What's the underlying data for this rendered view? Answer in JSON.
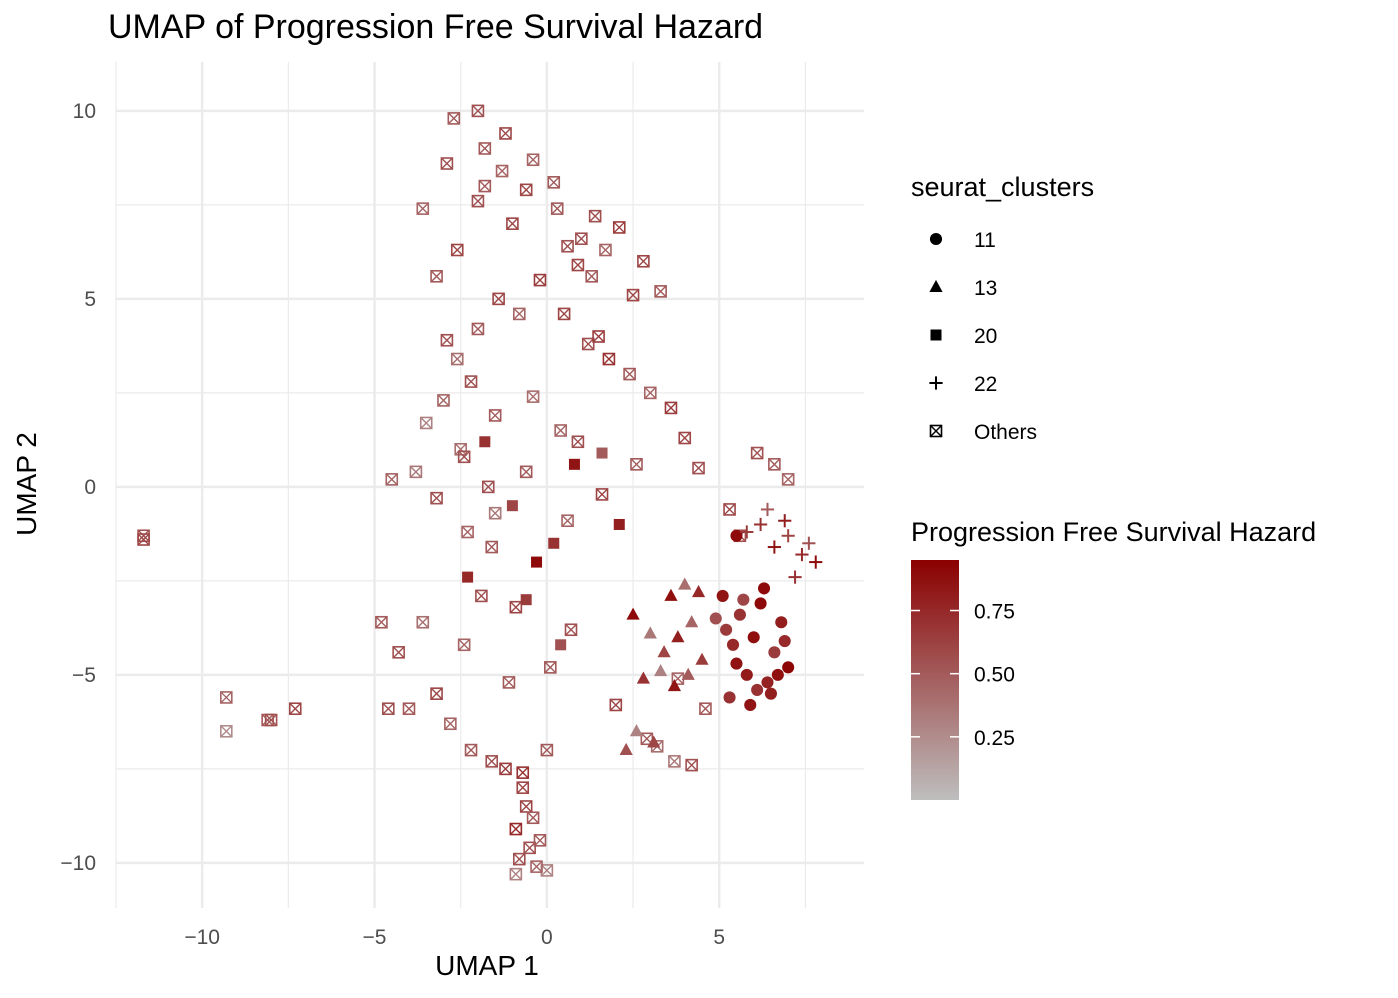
{
  "chart_data": {
    "type": "scatter",
    "title": "UMAP of Progression Free Survival Hazard",
    "xlabel": "UMAP 1",
    "ylabel": "UMAP 2",
    "xlim": [
      -12.5,
      9.2
    ],
    "ylim": [
      -11.2,
      11.3
    ],
    "x_ticks": [
      -10,
      -5,
      0,
      5
    ],
    "x_tick_labels": [
      "−10",
      "−5",
      "0",
      "5"
    ],
    "y_ticks": [
      -10,
      -5,
      0,
      5,
      10
    ],
    "y_tick_labels": [
      "−10",
      "−5",
      "0",
      "5",
      "10"
    ],
    "grid": true,
    "shape_legend": {
      "title": "seurat_clusters",
      "position": "right",
      "items": [
        {
          "label": "11",
          "shape": "circle"
        },
        {
          "label": "13",
          "shape": "triangle"
        },
        {
          "label": "20",
          "shape": "square"
        },
        {
          "label": "22",
          "shape": "plus"
        },
        {
          "label": "Others",
          "shape": "boxed-x"
        }
      ]
    },
    "color_legend": {
      "title": "Progression Free Survival Hazard",
      "position": "right",
      "low_color": "#bebebe",
      "high_color": "#8b0000",
      "range": [
        0.0,
        0.95
      ],
      "ticks": [
        0.25,
        0.5,
        0.75
      ],
      "tick_labels": [
        "0.25",
        "0.50",
        "0.75"
      ]
    },
    "series": [
      {
        "name": "11",
        "shape": "circle",
        "x": [
          5.1,
          5.6,
          6.2,
          6.8,
          5.4,
          6.0,
          6.6,
          5.8,
          6.4,
          7.0,
          5.3,
          5.9,
          6.5,
          5.7,
          6.3,
          6.9,
          5.5,
          6.1,
          6.7,
          5.2,
          4.9,
          5.5
        ],
        "y": [
          -2.9,
          -3.4,
          -3.1,
          -3.6,
          -4.2,
          -4.0,
          -4.4,
          -5.0,
          -5.2,
          -4.8,
          -5.6,
          -5.8,
          -5.5,
          -3.0,
          -2.7,
          -4.1,
          -4.7,
          -5.4,
          -5.0,
          -3.8,
          -3.5,
          -1.3
        ],
        "hazard": [
          0.85,
          0.7,
          0.9,
          0.8,
          0.75,
          0.88,
          0.65,
          0.82,
          0.78,
          0.92,
          0.7,
          0.85,
          0.8,
          0.6,
          0.9,
          0.74,
          0.86,
          0.7,
          0.88,
          0.66,
          0.55,
          0.9
        ]
      },
      {
        "name": "13",
        "shape": "triangle",
        "x": [
          2.5,
          3.0,
          3.4,
          3.8,
          4.2,
          2.8,
          3.3,
          3.7,
          4.1,
          4.5,
          2.3,
          3.6,
          4.0,
          4.4,
          3.1,
          2.6
        ],
        "y": [
          -3.4,
          -3.9,
          -4.4,
          -4.0,
          -3.6,
          -5.1,
          -4.9,
          -5.3,
          -5.0,
          -4.6,
          -7.0,
          -2.9,
          -2.6,
          -2.8,
          -6.8,
          -6.5
        ],
        "hazard": [
          0.9,
          0.35,
          0.6,
          0.8,
          0.45,
          0.7,
          0.3,
          0.85,
          0.5,
          0.65,
          0.55,
          0.88,
          0.4,
          0.75,
          0.6,
          0.3
        ]
      },
      {
        "name": "20",
        "shape": "square",
        "x": [
          -0.3,
          0.2,
          -1.0,
          0.8,
          -2.3,
          1.6,
          -0.6,
          2.1,
          -1.8,
          0.4
        ],
        "y": [
          -2.0,
          -1.5,
          -0.5,
          0.6,
          -2.4,
          0.9,
          -3.0,
          -1.0,
          1.2,
          -4.2
        ],
        "hazard": [
          0.9,
          0.7,
          0.6,
          0.85,
          0.75,
          0.5,
          0.65,
          0.8,
          0.7,
          0.55
        ]
      },
      {
        "name": "22",
        "shape": "plus",
        "x": [
          6.2,
          6.6,
          7.0,
          7.4,
          7.8,
          6.4,
          6.9,
          5.8,
          7.2,
          7.6
        ],
        "y": [
          -1.0,
          -1.6,
          -1.3,
          -1.8,
          -2.0,
          -0.6,
          -0.9,
          -1.2,
          -2.4,
          -1.5
        ],
        "hazard": [
          0.7,
          0.85,
          0.6,
          0.75,
          0.9,
          0.5,
          0.8,
          0.65,
          0.7,
          0.55
        ]
      },
      {
        "name": "Others",
        "shape": "boxed-x",
        "x": [
          -11.7,
          -11.7,
          -9.3,
          -9.3,
          -8.1,
          -8.0,
          -7.3,
          -4.6,
          -4.0,
          -3.6,
          -2.8,
          -2.2,
          -1.6,
          -1.2,
          -0.7,
          0.0,
          -0.6,
          -0.9,
          -0.5,
          0.0,
          -1.5,
          -2.3,
          0.5,
          1.2,
          1.8,
          2.4,
          3.0,
          3.6,
          4.0,
          4.4,
          -2.6,
          -2.0,
          -1.4,
          -0.8,
          -0.2,
          0.6,
          1.3,
          -4.5,
          -3.8,
          -3.2,
          -1.0,
          0.3,
          1.0,
          1.7,
          2.5,
          -2.7,
          -2.0,
          -1.2,
          -0.4,
          0.2,
          1.4,
          2.1,
          2.8,
          3.3,
          -3.6,
          -2.9,
          -1.8,
          0.9,
          1.5,
          6.1,
          6.6,
          7.0,
          5.3,
          5.6,
          3.2,
          3.7,
          -4.8,
          -4.3,
          -3.2,
          -2.4,
          -1.1,
          0.7,
          2.0,
          2.9,
          3.8,
          -3.5,
          -2.5,
          -1.7,
          -0.6,
          0.4,
          1.6,
          2.6,
          -1.9,
          -0.9,
          0.1,
          -3.0,
          -2.2,
          -1.5,
          -0.4,
          0.9,
          -0.7,
          -0.4,
          -0.8,
          -0.3,
          -0.9,
          -0.2,
          -2.9,
          -3.2,
          -2.6,
          -2.0,
          -1.8,
          -1.3,
          -0.6,
          -2.4,
          -1.6,
          0.6,
          4.6,
          4.2
        ],
        "y": [
          -1.3,
          -1.4,
          -5.6,
          -6.5,
          -6.2,
          -6.2,
          -5.9,
          -5.9,
          -5.9,
          -3.6,
          -6.3,
          -7.0,
          -7.3,
          -7.5,
          -7.6,
          -7.0,
          -8.5,
          -9.1,
          -9.6,
          -10.2,
          -0.7,
          -1.2,
          4.6,
          3.8,
          3.4,
          3.0,
          2.5,
          2.1,
          1.3,
          0.5,
          3.4,
          4.2,
          5.0,
          4.6,
          5.5,
          6.4,
          5.6,
          0.2,
          0.4,
          -0.3,
          7.0,
          7.4,
          6.6,
          6.3,
          5.1,
          9.8,
          10.0,
          9.4,
          8.7,
          8.1,
          7.2,
          6.9,
          6.0,
          5.2,
          7.4,
          8.6,
          8.0,
          5.9,
          4.0,
          0.9,
          0.6,
          0.2,
          -0.6,
          -1.3,
          -6.9,
          -7.3,
          -3.6,
          -4.4,
          -5.5,
          -4.2,
          -5.2,
          -3.8,
          -5.8,
          -6.7,
          -5.1,
          1.7,
          1.0,
          0.0,
          0.4,
          1.5,
          -0.2,
          0.6,
          -2.9,
          -3.2,
          -4.8,
          2.3,
          2.8,
          1.9,
          2.4,
          1.2,
          -8.0,
          -8.8,
          -9.9,
          -10.1,
          -10.3,
          -9.4,
          3.9,
          5.6,
          6.3,
          7.6,
          9.0,
          8.4,
          7.9,
          0.8,
          -1.6,
          -0.9,
          -5.9,
          -7.4
        ],
        "hazard": [
          0.55,
          0.6,
          0.45,
          0.25,
          0.5,
          0.55,
          0.6,
          0.55,
          0.5,
          0.4,
          0.45,
          0.5,
          0.55,
          0.65,
          0.7,
          0.5,
          0.6,
          0.75,
          0.55,
          0.3,
          0.35,
          0.45,
          0.6,
          0.55,
          0.7,
          0.5,
          0.45,
          0.65,
          0.6,
          0.55,
          0.4,
          0.5,
          0.6,
          0.45,
          0.65,
          0.55,
          0.5,
          0.45,
          0.35,
          0.55,
          0.6,
          0.5,
          0.55,
          0.45,
          0.6,
          0.5,
          0.55,
          0.6,
          0.45,
          0.5,
          0.55,
          0.65,
          0.6,
          0.5,
          0.45,
          0.55,
          0.5,
          0.6,
          0.65,
          0.55,
          0.5,
          0.45,
          0.6,
          0.55,
          0.4,
          0.35,
          0.5,
          0.55,
          0.6,
          0.45,
          0.5,
          0.55,
          0.6,
          0.5,
          0.45,
          0.3,
          0.4,
          0.55,
          0.5,
          0.45,
          0.6,
          0.5,
          0.55,
          0.6,
          0.5,
          0.45,
          0.55,
          0.5,
          0.4,
          0.55,
          0.6,
          0.5,
          0.55,
          0.45,
          0.3,
          0.5,
          0.55,
          0.5,
          0.6,
          0.55,
          0.5,
          0.45,
          0.6,
          0.55,
          0.5,
          0.45,
          0.5,
          0.55
        ]
      }
    ]
  }
}
